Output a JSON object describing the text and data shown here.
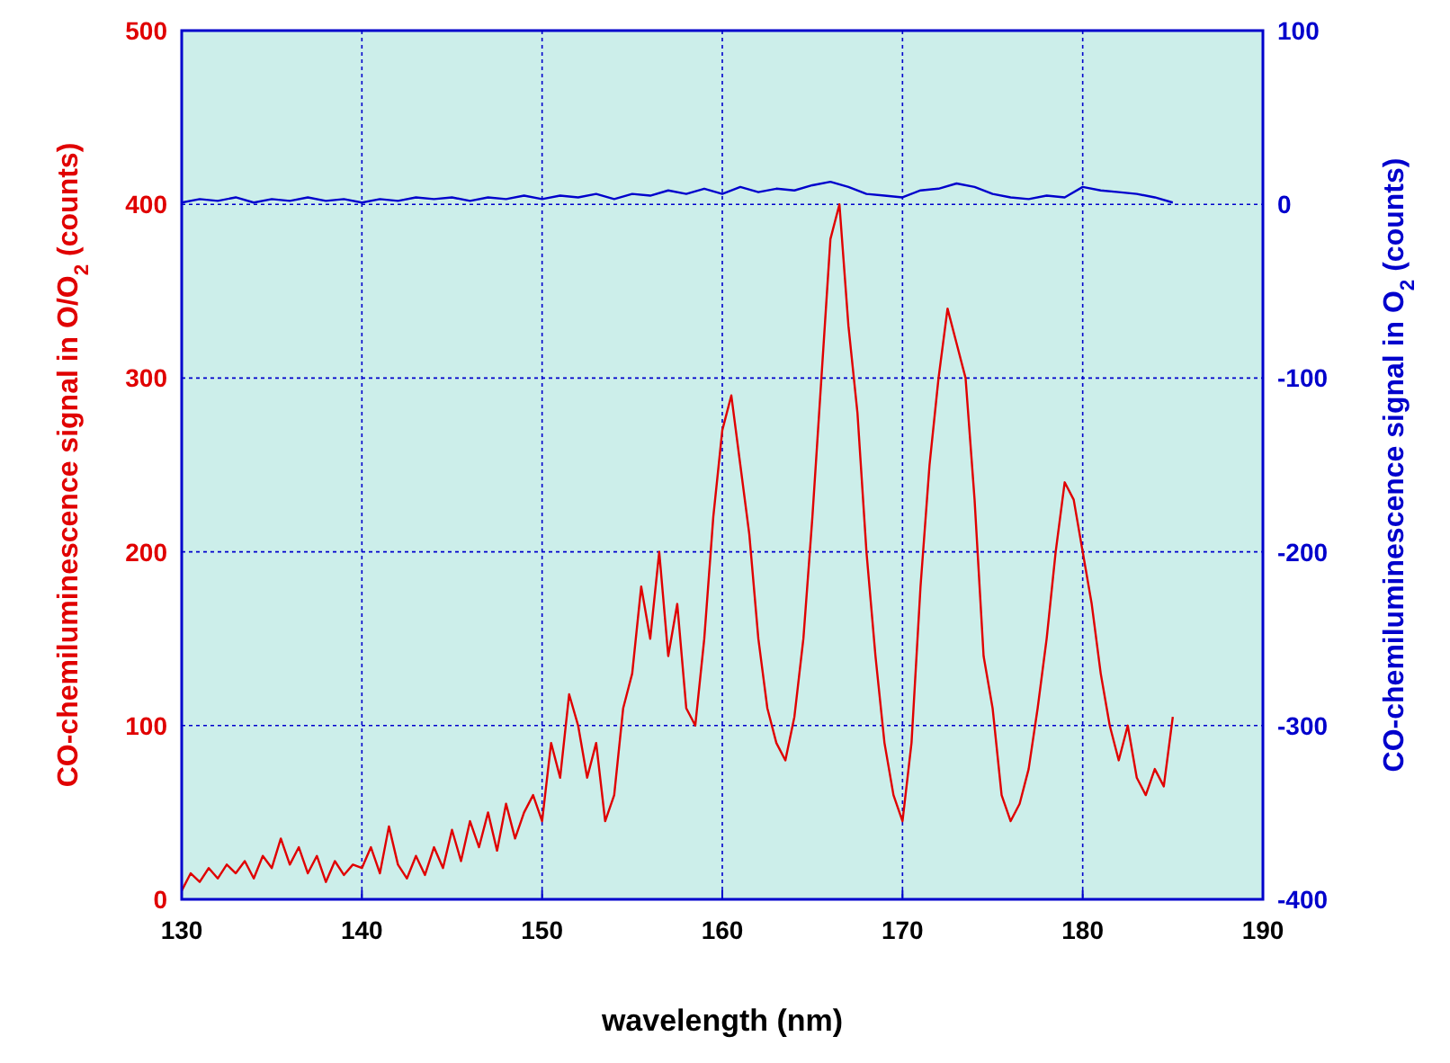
{
  "chart_data": {
    "type": "line",
    "xlabel": "wavelength (nm)",
    "ylabel": "CO-chemiluminescence signal in O/O$_{2}$ (counts)",
    "y2label": "CO-chemiluminescence signal in O$_{2}$ (counts)",
    "xlim": [
      130,
      190
    ],
    "xticks": [
      130,
      140,
      150,
      160,
      170,
      180,
      190
    ],
    "ylim": [
      0,
      500
    ],
    "yticks": [
      0,
      100,
      200,
      300,
      400,
      500
    ],
    "y2lim": [
      -400,
      100
    ],
    "y2ticks": [
      -400,
      -300,
      -200,
      -100,
      0,
      100
    ],
    "grid": true,
    "series": [
      {
        "color": "#e00000",
        "x": [
          130,
          130.5,
          131,
          131.5,
          132,
          132.5,
          133,
          133.5,
          134,
          134.5,
          135,
          135.5,
          136,
          136.5,
          137,
          137.5,
          138,
          138.5,
          139,
          139.5,
          140,
          140.5,
          141,
          141.5,
          142,
          142.5,
          143,
          143.5,
          144,
          144.5,
          145,
          145.5,
          146,
          146.5,
          147,
          147.5,
          148,
          148.5,
          149,
          149.5,
          150,
          150.5,
          151,
          151.5,
          152,
          152.5,
          153,
          153.5,
          154,
          154.5,
          155,
          155.5,
          156,
          156.5,
          157,
          157.5,
          158,
          158.5,
          159,
          159.5,
          160,
          160.5,
          161,
          161.5,
          162,
          162.5,
          163,
          163.5,
          164,
          164.5,
          165,
          165.5,
          166,
          166.5,
          167,
          167.5,
          168,
          168.5,
          169,
          169.5,
          170,
          170.5,
          171,
          171.5,
          172,
          172.5,
          173,
          173.5,
          174,
          174.5,
          175,
          175.5,
          176,
          176.5,
          177,
          177.5,
          178,
          178.5,
          179,
          179.5,
          180,
          180.5,
          181,
          181.5,
          182,
          182.5,
          183,
          183.5,
          184,
          184.5,
          185
        ],
        "values": [
          5,
          15,
          10,
          18,
          12,
          20,
          15,
          22,
          12,
          25,
          18,
          35,
          20,
          30,
          15,
          25,
          10,
          22,
          14,
          20,
          18,
          30,
          15,
          42,
          20,
          12,
          25,
          14,
          30,
          18,
          40,
          22,
          45,
          30,
          50,
          28,
          55,
          35,
          50,
          60,
          45,
          90,
          70,
          118,
          100,
          70,
          90,
          45,
          60,
          110,
          130,
          180,
          150,
          200,
          140,
          170,
          110,
          100,
          150,
          220,
          270,
          290,
          250,
          210,
          150,
          110,
          90,
          80,
          105,
          150,
          220,
          300,
          380,
          400,
          330,
          280,
          200,
          140,
          90,
          60,
          45,
          90,
          180,
          250,
          300,
          340,
          320,
          300,
          230,
          140,
          110,
          60,
          45,
          55,
          75,
          110,
          150,
          200,
          240,
          230,
          200,
          170,
          130,
          100,
          80,
          100,
          70,
          60,
          75,
          65,
          105
        ]
      },
      {
        "color": "#0000cc",
        "axis": "y2",
        "x": [
          130,
          131,
          132,
          133,
          134,
          135,
          136,
          137,
          138,
          139,
          140,
          141,
          142,
          143,
          144,
          145,
          146,
          147,
          148,
          149,
          150,
          151,
          152,
          153,
          154,
          155,
          156,
          157,
          158,
          159,
          160,
          161,
          162,
          163,
          164,
          165,
          166,
          167,
          168,
          169,
          170,
          171,
          172,
          173,
          174,
          175,
          176,
          177,
          178,
          179,
          180,
          181,
          182,
          183,
          184,
          185
        ],
        "values": [
          1,
          3,
          2,
          4,
          1,
          3,
          2,
          4,
          2,
          3,
          1,
          3,
          2,
          4,
          3,
          4,
          2,
          4,
          3,
          5,
          3,
          5,
          4,
          6,
          3,
          6,
          5,
          8,
          6,
          9,
          6,
          10,
          7,
          9,
          8,
          11,
          13,
          10,
          6,
          5,
          4,
          8,
          9,
          12,
          10,
          6,
          4,
          3,
          5,
          4,
          10,
          8,
          7,
          6,
          4,
          1
        ]
      }
    ]
  }
}
